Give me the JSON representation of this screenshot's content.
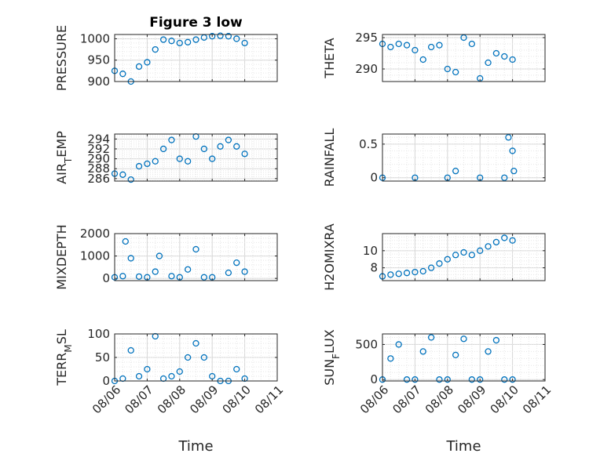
{
  "chart_data": [
    {
      "type": "scatter",
      "title": "Figure 3 low",
      "ylabel": "PRESSURE",
      "ylim": [
        900,
        1010
      ],
      "yticks": [
        "900",
        "950",
        "1000"
      ],
      "grid": "on",
      "x": [
        "08/06 00:00",
        "08/06 06:00",
        "08/06 12:00",
        "08/06 18:00",
        "08/07 00:00",
        "08/07 06:00",
        "08/07 12:00",
        "08/07 18:00",
        "08/08 00:00",
        "08/08 06:00",
        "08/08 12:00",
        "08/08 18:00",
        "08/09 00:00",
        "08/09 06:00",
        "08/09 12:00",
        "08/09 18:00",
        "08/10 00:00"
      ],
      "values": [
        925,
        918,
        900,
        935,
        945,
        975,
        998,
        995,
        990,
        992,
        998,
        1003,
        1006,
        1007,
        1006,
        1000,
        990
      ]
    },
    {
      "type": "scatter",
      "ylabel": "THETA",
      "ylim": [
        288,
        295.5
      ],
      "yticks": [
        "290",
        "295"
      ],
      "grid": "on",
      "x": [
        "08/06 00:00",
        "08/06 06:00",
        "08/06 12:00",
        "08/06 18:00",
        "08/07 00:00",
        "08/07 06:00",
        "08/07 12:00",
        "08/07 18:00",
        "08/08 00:00",
        "08/08 06:00",
        "08/08 12:00",
        "08/08 18:00",
        "08/09 00:00",
        "08/09 06:00",
        "08/09 12:00",
        "08/09 18:00",
        "08/10 00:00"
      ],
      "values": [
        294,
        293.5,
        294,
        293.8,
        293,
        291.5,
        293.5,
        293.8,
        290,
        289.5,
        295,
        294,
        288.5,
        291,
        292.5,
        292,
        291.5
      ]
    },
    {
      "type": "scatter",
      "ylabel": "AIR_TEMP",
      "ylim": [
        285.5,
        295
      ],
      "yticks": [
        "286",
        "288",
        "290",
        "292",
        "294"
      ],
      "grid": "on",
      "x": [
        "08/06 00:00",
        "08/06 06:00",
        "08/06 12:00",
        "08/06 18:00",
        "08/07 00:00",
        "08/07 06:00",
        "08/07 12:00",
        "08/07 18:00",
        "08/08 00:00",
        "08/08 06:00",
        "08/08 12:00",
        "08/08 18:00",
        "08/09 00:00",
        "08/09 06:00",
        "08/09 12:00",
        "08/09 18:00",
        "08/10 00:00"
      ],
      "values": [
        287,
        286.8,
        285.8,
        288.5,
        289,
        289.5,
        292,
        293.8,
        290,
        289.5,
        294.5,
        292,
        290,
        292.5,
        293.8,
        292.5,
        291
      ]
    },
    {
      "type": "scatter",
      "ylabel": "RAINFALL",
      "ylim": [
        -0.05,
        0.65
      ],
      "yticks": [
        "0",
        "0.5"
      ],
      "grid": "on",
      "x": [
        "08/06 00:00",
        "08/07 00:00",
        "08/08 00:00",
        "08/08 06:00",
        "08/09 00:00",
        "08/09 18:00",
        "08/09 21:00",
        "08/10 00:00",
        "08/10 01:00"
      ],
      "values": [
        0,
        0,
        0,
        0.1,
        0,
        0,
        0.6,
        0.4,
        0.1
      ]
    },
    {
      "type": "scatter",
      "ylabel": "MIXDEPTH",
      "ylim": [
        -100,
        2000
      ],
      "yticks": [
        "0",
        "1000",
        "2000"
      ],
      "grid": "on",
      "x": [
        "08/06 00:00",
        "08/06 06:00",
        "08/06 08:00",
        "08/06 12:00",
        "08/06 18:00",
        "08/07 00:00",
        "08/07 06:00",
        "08/07 09:00",
        "08/07 18:00",
        "08/08 00:00",
        "08/08 06:00",
        "08/08 12:00",
        "08/08 18:00",
        "08/09 00:00",
        "08/09 12:00",
        "08/09 18:00",
        "08/10 00:00"
      ],
      "values": [
        50,
        100,
        1650,
        900,
        80,
        50,
        300,
        1000,
        100,
        50,
        400,
        1300,
        50,
        50,
        250,
        700,
        300
      ]
    },
    {
      "type": "scatter",
      "ylabel": "H2OMIXRA",
      "ylim": [
        6.5,
        12
      ],
      "yticks": [
        "8",
        "10"
      ],
      "grid": "on",
      "x": [
        "08/06 00:00",
        "08/06 06:00",
        "08/06 12:00",
        "08/06 18:00",
        "08/07 00:00",
        "08/07 06:00",
        "08/07 12:00",
        "08/07 18:00",
        "08/08 00:00",
        "08/08 06:00",
        "08/08 12:00",
        "08/08 18:00",
        "08/09 00:00",
        "08/09 06:00",
        "08/09 12:00",
        "08/09 18:00",
        "08/10 00:00"
      ],
      "values": [
        7,
        7.2,
        7.3,
        7.4,
        7.5,
        7.6,
        8,
        8.5,
        9,
        9.5,
        9.8,
        9.5,
        10,
        10.5,
        11,
        11.5,
        11.2
      ]
    },
    {
      "type": "scatter",
      "ylabel": "TERR_MSL",
      "ylim": [
        0,
        100
      ],
      "yticks": [
        "0",
        "50",
        "100"
      ],
      "grid": "on",
      "x": [
        "08/06 00:00",
        "08/06 06:00",
        "08/06 12:00",
        "08/06 18:00",
        "08/07 00:00",
        "08/07 06:00",
        "08/07 12:00",
        "08/07 18:00",
        "08/08 00:00",
        "08/08 06:00",
        "08/08 12:00",
        "08/08 18:00",
        "08/09 00:00",
        "08/09 06:00",
        "08/09 12:00",
        "08/09 18:00",
        "08/10 00:00"
      ],
      "values": [
        0,
        5,
        65,
        10,
        25,
        95,
        5,
        10,
        20,
        50,
        80,
        50,
        10,
        0,
        0,
        25,
        5
      ]
    },
    {
      "type": "scatter",
      "ylabel": "SUN_FLUX",
      "ylim": [
        -20,
        650
      ],
      "yticks": [
        "0",
        "500"
      ],
      "grid": "on",
      "x": [
        "08/06 00:00",
        "08/06 06:00",
        "08/06 12:00",
        "08/06 18:00",
        "08/07 00:00",
        "08/07 06:00",
        "08/07 12:00",
        "08/07 18:00",
        "08/08 00:00",
        "08/08 06:00",
        "08/08 12:00",
        "08/08 18:00",
        "08/09 00:00",
        "08/09 06:00",
        "08/09 12:00",
        "08/09 18:00",
        "08/10 00:00"
      ],
      "values": [
        0,
        300,
        500,
        0,
        0,
        400,
        600,
        0,
        0,
        350,
        580,
        0,
        0,
        400,
        560,
        0,
        0
      ]
    }
  ],
  "x_axis": {
    "label": "Time",
    "range": [
      "08/06",
      "08/11"
    ],
    "ticks": [
      "08/06",
      "08/07",
      "08/08",
      "08/09",
      "08/10",
      "08/11"
    ]
  },
  "colors": {
    "marker": "#0072BD",
    "axis": "#262626",
    "grid": "#b0b0b0"
  }
}
